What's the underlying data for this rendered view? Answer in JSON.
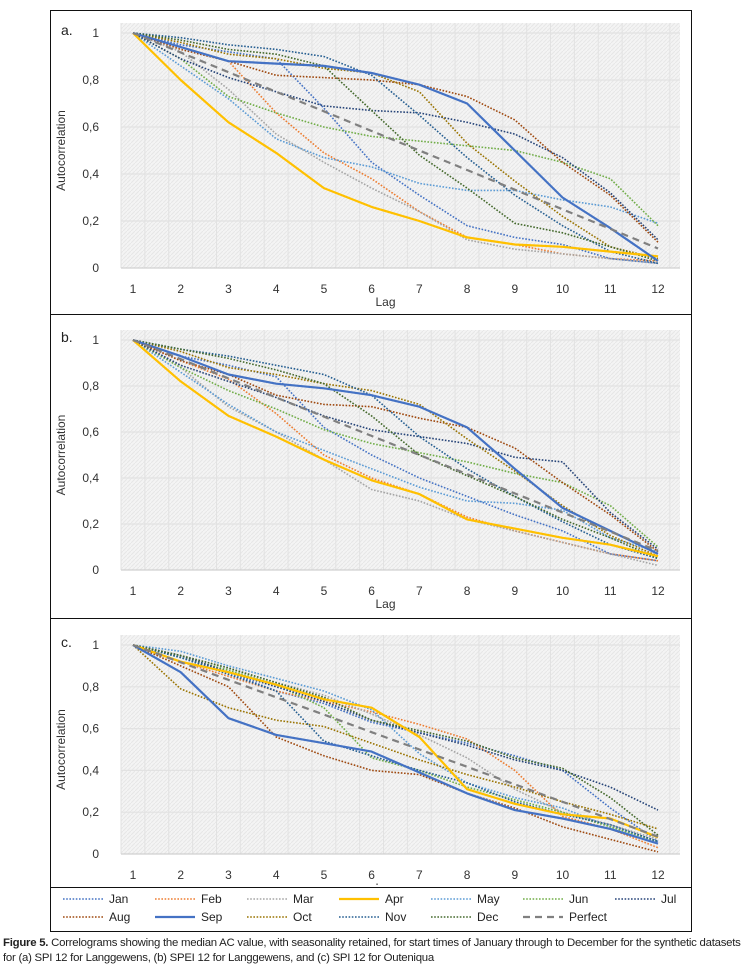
{
  "legend": [
    {
      "name": "Jan",
      "color": "#4472C4",
      "style": "dotted"
    },
    {
      "name": "Feb",
      "color": "#ED7D31",
      "style": "dotted"
    },
    {
      "name": "Mar",
      "color": "#A5A5A5",
      "style": "dotted"
    },
    {
      "name": "Apr",
      "color": "#FFC000",
      "style": "solid"
    },
    {
      "name": "May",
      "color": "#5B9BD5",
      "style": "dotted"
    },
    {
      "name": "Jun",
      "color": "#70AD47",
      "style": "dotted"
    },
    {
      "name": "Jul",
      "color": "#264478",
      "style": "dotted"
    },
    {
      "name": "Aug",
      "color": "#9E480E",
      "style": "dotted"
    },
    {
      "name": "Sep",
      "color": "#4472C4",
      "style": "solid"
    },
    {
      "name": "Oct",
      "color": "#997300",
      "style": "dotted"
    },
    {
      "name": "Nov",
      "color": "#255E91",
      "style": "dotted"
    },
    {
      "name": "Dec",
      "color": "#43682B",
      "style": "dotted"
    },
    {
      "name": "Perfect",
      "color": "#808080",
      "style": "dashed"
    }
  ],
  "caption": {
    "label": "Figure 5.",
    "text": " Correlograms showing the median AC value, with seasonality retained, for start times of January through to December for the synthetic datasets for (a) SPI 12 for Langgewens, (b) SPEI 12 for Langgewens, and (c) SPI 12 for Outeniqua"
  },
  "chart_data": [
    {
      "type": "line",
      "panel_label": "a.",
      "title": "SPI 12 for Langgewens",
      "xlabel": "Lag",
      "ylabel": "Autocorrelation",
      "x": [
        1,
        2,
        3,
        4,
        5,
        6,
        7,
        8,
        9,
        10,
        11,
        12
      ],
      "x_tick_labels": [
        "1",
        "2",
        "3",
        "4",
        "5",
        "6",
        "7",
        "8",
        "9",
        "10",
        "11",
        "12"
      ],
      "ylim": [
        0,
        1
      ],
      "y_ticks": [
        0,
        0.2,
        0.4,
        0.6,
        0.8,
        1
      ],
      "y_tick_labels": [
        "0",
        "0,2",
        "0,4",
        "0,6",
        "0,8",
        "1"
      ],
      "grid": true,
      "series": [
        {
          "name": "Jan",
          "values": [
            1,
            0.95,
            0.92,
            0.89,
            0.68,
            0.45,
            0.31,
            0.18,
            0.13,
            0.1,
            0.04,
            0.02
          ]
        },
        {
          "name": "Feb",
          "values": [
            1,
            0.94,
            0.88,
            0.66,
            0.49,
            0.38,
            0.24,
            0.13,
            0.1,
            0.06,
            0.04,
            0.03
          ]
        },
        {
          "name": "Mar",
          "values": [
            1,
            0.92,
            0.76,
            0.57,
            0.45,
            0.34,
            0.24,
            0.12,
            0.08,
            0.06,
            0.04,
            0.02
          ]
        },
        {
          "name": "Apr",
          "values": [
            1,
            0.8,
            0.62,
            0.49,
            0.34,
            0.26,
            0.2,
            0.13,
            0.1,
            0.09,
            0.07,
            0.05
          ]
        },
        {
          "name": "May",
          "values": [
            1,
            0.86,
            0.72,
            0.55,
            0.47,
            0.43,
            0.36,
            0.33,
            0.33,
            0.29,
            0.26,
            0.19
          ]
        },
        {
          "name": "Jun",
          "values": [
            1,
            0.89,
            0.73,
            0.66,
            0.6,
            0.56,
            0.54,
            0.52,
            0.5,
            0.45,
            0.38,
            0.18
          ]
        },
        {
          "name": "Jul",
          "values": [
            1,
            0.89,
            0.81,
            0.75,
            0.69,
            0.67,
            0.66,
            0.62,
            0.57,
            0.47,
            0.32,
            0.12
          ]
        },
        {
          "name": "Aug",
          "values": [
            1,
            0.93,
            0.88,
            0.82,
            0.81,
            0.8,
            0.78,
            0.73,
            0.63,
            0.45,
            0.31,
            0.11
          ]
        },
        {
          "name": "Sep",
          "values": [
            1,
            0.94,
            0.88,
            0.87,
            0.86,
            0.83,
            0.78,
            0.7,
            0.5,
            0.3,
            0.17,
            0.03
          ]
        },
        {
          "name": "Oct",
          "values": [
            1,
            0.96,
            0.91,
            0.89,
            0.85,
            0.83,
            0.75,
            0.53,
            0.37,
            0.22,
            0.09,
            0.04
          ]
        },
        {
          "name": "Nov",
          "values": [
            1,
            0.98,
            0.95,
            0.93,
            0.9,
            0.82,
            0.65,
            0.47,
            0.31,
            0.18,
            0.07,
            0.02
          ]
        },
        {
          "name": "Dec",
          "values": [
            1,
            0.97,
            0.93,
            0.91,
            0.86,
            0.67,
            0.48,
            0.34,
            0.19,
            0.15,
            0.09,
            0.03
          ]
        },
        {
          "name": "Perfect",
          "values": [
            1,
            0.917,
            0.833,
            0.75,
            0.667,
            0.583,
            0.5,
            0.417,
            0.333,
            0.25,
            0.167,
            0.083
          ]
        }
      ]
    },
    {
      "type": "line",
      "panel_label": "b.",
      "title": "SPEI 12 for Langgewens",
      "xlabel": "Lag",
      "ylabel": "Autocorrelation",
      "x": [
        1,
        2,
        3,
        4,
        5,
        6,
        7,
        8,
        9,
        10,
        11,
        12
      ],
      "x_tick_labels": [
        "1",
        "2",
        "3",
        "4",
        "5",
        "6",
        "7",
        "8",
        "9",
        "10",
        "11",
        "12"
      ],
      "ylim": [
        0,
        1
      ],
      "y_ticks": [
        0,
        0.2,
        0.4,
        0.6,
        0.8,
        1
      ],
      "y_tick_labels": [
        "0",
        "0,2",
        "0,4",
        "0,6",
        "0,8",
        "1"
      ],
      "grid": true,
      "series": [
        {
          "name": "Jan",
          "values": [
            1,
            0.93,
            0.89,
            0.84,
            0.62,
            0.5,
            0.4,
            0.32,
            0.24,
            0.17,
            0.07,
            0.04
          ]
        },
        {
          "name": "Feb",
          "values": [
            1,
            0.91,
            0.83,
            0.68,
            0.5,
            0.4,
            0.33,
            0.23,
            0.17,
            0.12,
            0.07,
            0.04
          ]
        },
        {
          "name": "Mar",
          "values": [
            1,
            0.88,
            0.71,
            0.6,
            0.48,
            0.35,
            0.3,
            0.22,
            0.17,
            0.12,
            0.07,
            0.02
          ]
        },
        {
          "name": "Apr",
          "values": [
            1,
            0.82,
            0.67,
            0.58,
            0.48,
            0.39,
            0.33,
            0.22,
            0.18,
            0.14,
            0.11,
            0.06
          ]
        },
        {
          "name": "May",
          "values": [
            1,
            0.86,
            0.72,
            0.6,
            0.52,
            0.44,
            0.36,
            0.3,
            0.29,
            0.26,
            0.14,
            0.08
          ]
        },
        {
          "name": "Jun",
          "values": [
            1,
            0.88,
            0.78,
            0.7,
            0.61,
            0.55,
            0.51,
            0.47,
            0.42,
            0.38,
            0.28,
            0.1
          ]
        },
        {
          "name": "Jul",
          "values": [
            1,
            0.89,
            0.82,
            0.75,
            0.67,
            0.61,
            0.58,
            0.55,
            0.49,
            0.47,
            0.25,
            0.09
          ]
        },
        {
          "name": "Aug",
          "values": [
            1,
            0.91,
            0.85,
            0.76,
            0.72,
            0.71,
            0.66,
            0.62,
            0.53,
            0.38,
            0.24,
            0.08
          ]
        },
        {
          "name": "Sep",
          "values": [
            1,
            0.93,
            0.85,
            0.81,
            0.79,
            0.76,
            0.71,
            0.62,
            0.44,
            0.27,
            0.17,
            0.07
          ]
        },
        {
          "name": "Oct",
          "values": [
            1,
            0.95,
            0.88,
            0.85,
            0.81,
            0.78,
            0.72,
            0.57,
            0.43,
            0.28,
            0.15,
            0.06
          ]
        },
        {
          "name": "Nov",
          "values": [
            1,
            0.96,
            0.93,
            0.89,
            0.85,
            0.76,
            0.58,
            0.44,
            0.32,
            0.21,
            0.11,
            0.05
          ]
        },
        {
          "name": "Dec",
          "values": [
            1,
            0.96,
            0.92,
            0.87,
            0.81,
            0.67,
            0.5,
            0.41,
            0.32,
            0.22,
            0.14,
            0.05
          ]
        },
        {
          "name": "Perfect",
          "values": [
            1,
            0.917,
            0.833,
            0.75,
            0.667,
            0.583,
            0.5,
            0.417,
            0.333,
            0.25,
            0.167,
            0.083
          ]
        }
      ]
    },
    {
      "type": "line",
      "panel_label": "c.",
      "title": "SPI 12 for Outeniqua",
      "xlabel": "Lag",
      "ylabel": "Autocorrelation",
      "x": [
        1,
        2,
        3,
        4,
        5,
        6,
        7,
        8,
        9,
        10,
        11,
        12
      ],
      "x_tick_labels": [
        "1",
        "2",
        "3",
        "4",
        "5",
        "6",
        "7",
        "8",
        "9",
        "10",
        "11",
        "12"
      ],
      "ylim": [
        0,
        1
      ],
      "y_ticks": [
        0,
        0.2,
        0.4,
        0.6,
        0.8,
        1
      ],
      "y_tick_labels": [
        "0",
        "0,2",
        "0,4",
        "0,6",
        "0,8",
        "1"
      ],
      "grid": true,
      "series": [
        {
          "name": "Jan",
          "values": [
            1,
            0.94,
            0.87,
            0.78,
            0.72,
            0.63,
            0.58,
            0.53,
            0.47,
            0.4,
            0.22,
            0.06
          ]
        },
        {
          "name": "Feb",
          "values": [
            1,
            0.92,
            0.85,
            0.78,
            0.73,
            0.68,
            0.62,
            0.55,
            0.4,
            0.18,
            0.12,
            0.03
          ]
        },
        {
          "name": "Mar",
          "values": [
            1,
            0.95,
            0.89,
            0.82,
            0.76,
            0.67,
            0.57,
            0.46,
            0.31,
            0.2,
            0.14,
            0.07
          ]
        },
        {
          "name": "Apr",
          "values": [
            1,
            0.92,
            0.87,
            0.81,
            0.74,
            0.7,
            0.56,
            0.31,
            0.24,
            0.19,
            0.17,
            0.08
          ]
        },
        {
          "name": "May",
          "values": [
            1,
            0.97,
            0.9,
            0.84,
            0.78,
            0.69,
            0.48,
            0.34,
            0.27,
            0.22,
            0.13,
            0.06
          ]
        },
        {
          "name": "Jun",
          "values": [
            1,
            0.94,
            0.88,
            0.81,
            0.7,
            0.46,
            0.4,
            0.32,
            0.26,
            0.2,
            0.13,
            0.06
          ]
        },
        {
          "name": "Jul",
          "values": [
            1,
            0.95,
            0.87,
            0.8,
            0.73,
            0.64,
            0.58,
            0.52,
            0.45,
            0.4,
            0.32,
            0.21
          ]
        },
        {
          "name": "Aug",
          "values": [
            1,
            0.9,
            0.8,
            0.56,
            0.47,
            0.4,
            0.38,
            0.29,
            0.22,
            0.13,
            0.07,
            0.01
          ]
        },
        {
          "name": "Sep",
          "values": [
            1,
            0.87,
            0.65,
            0.57,
            0.53,
            0.49,
            0.39,
            0.29,
            0.21,
            0.17,
            0.12,
            0.05
          ]
        },
        {
          "name": "Oct",
          "values": [
            1,
            0.79,
            0.7,
            0.64,
            0.61,
            0.53,
            0.45,
            0.38,
            0.32,
            0.25,
            0.19,
            0.12
          ]
        },
        {
          "name": "Nov",
          "values": [
            1,
            0.94,
            0.86,
            0.78,
            0.54,
            0.47,
            0.4,
            0.34,
            0.25,
            0.19,
            0.14,
            0.06
          ]
        },
        {
          "name": "Dec",
          "values": [
            1,
            0.95,
            0.89,
            0.82,
            0.75,
            0.64,
            0.59,
            0.54,
            0.46,
            0.41,
            0.27,
            0.09
          ]
        },
        {
          "name": "Perfect",
          "values": [
            1,
            0.917,
            0.833,
            0.75,
            0.667,
            0.583,
            0.5,
            0.417,
            0.333,
            0.25,
            0.167,
            0.083
          ]
        }
      ]
    }
  ]
}
